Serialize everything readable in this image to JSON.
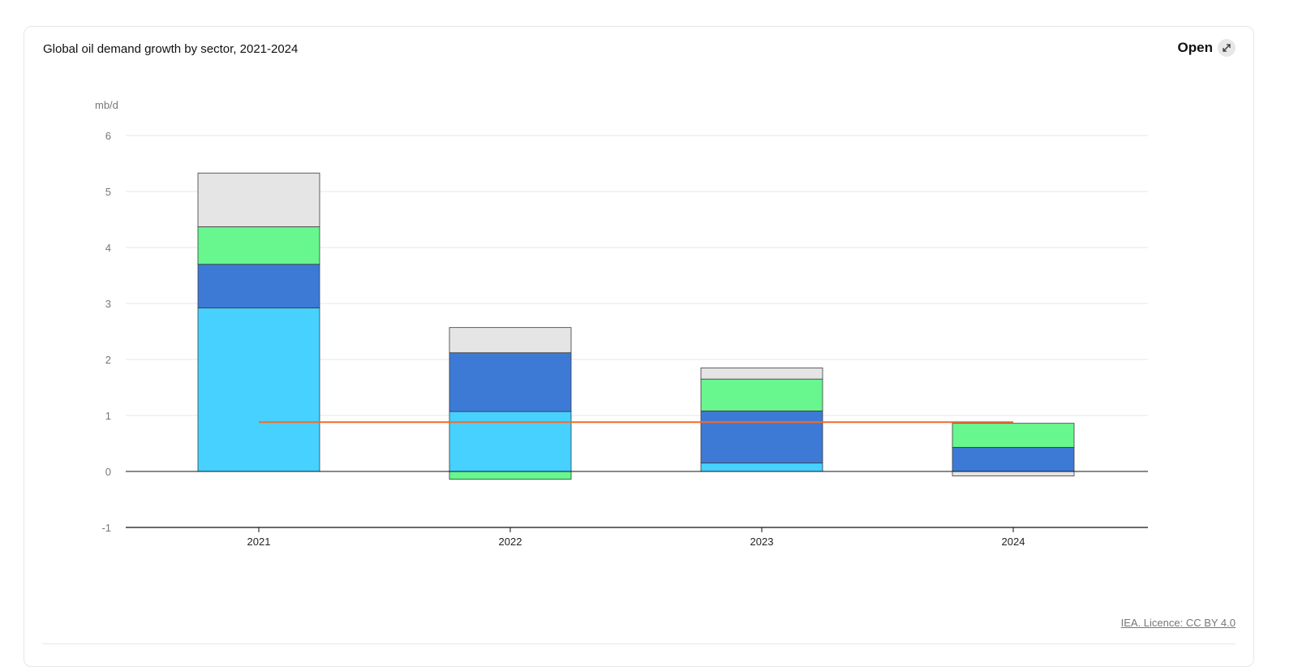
{
  "header": {
    "title": "Global oil demand growth by sector, 2021-2024",
    "open_label": "Open"
  },
  "footer": {
    "licence": "IEA. Licence: CC BY 4.0"
  },
  "icons": {
    "expand": "expand-arrows-icon"
  },
  "chart_data": {
    "type": "bar",
    "stacked": true,
    "categories": [
      "2021",
      "2022",
      "2023",
      "2024"
    ],
    "ylabel": "mb/d",
    "ylim": [
      -1,
      6
    ],
    "yticks": [
      -1,
      0,
      1,
      2,
      3,
      4,
      5,
      6
    ],
    "grid": true,
    "series": [
      {
        "color": "#47d1ff",
        "values": [
          2.92,
          1.07,
          0.15,
          0.0
        ]
      },
      {
        "color": "#3d7ad6",
        "values": [
          0.78,
          1.05,
          0.93,
          0.43
        ]
      },
      {
        "color": "#68f68f",
        "values": [
          0.67,
          -0.14,
          0.57,
          0.43
        ]
      },
      {
        "color": "#e5e5e5",
        "values": [
          0.96,
          0.45,
          0.2,
          -0.08
        ]
      }
    ],
    "line": {
      "color": "#f26b2b",
      "value": 0.88
    }
  }
}
